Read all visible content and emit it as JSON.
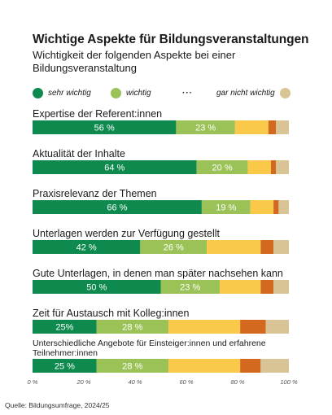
{
  "title": "Wichtige Aspekte für Bildungsveranstaltungen",
  "subtitle": "Wichtigkeit der folgenden Aspekte bei einer Bildungsveranstaltung",
  "source": "Quelle: Bildungsumfrage, 2024/25",
  "colors": {
    "sehr_wichtig": "#0e8a4e",
    "wichtig": "#9bc257",
    "mid": "#fbc94a",
    "orange": "#d2691e",
    "gar_nicht_wichtig": "#d8c494"
  },
  "legend": [
    {
      "key": "sehr_wichtig",
      "label": "sehr wichtig"
    },
    {
      "key": "wichtig",
      "label": "wichtig"
    },
    {
      "key": "dots",
      "label": "···"
    },
    {
      "key": "gar_nicht_wichtig",
      "label": "gar nicht wichtig"
    }
  ],
  "chart_data": {
    "type": "bar",
    "orientation": "horizontal",
    "stacked": true,
    "title": "Wichtige Aspekte für Bildungsveranstaltungen",
    "subtitle": "Wichtigkeit der folgenden Aspekte bei einer Bildungsveranstaltung",
    "xlim": [
      0,
      100
    ],
    "x_ticks": [
      "0 %",
      "20 %",
      "40 %",
      "60 %",
      "80 %",
      "100 %"
    ],
    "categories": [
      "Expertise der Referent:innen",
      "Aktualität der Inhalte",
      "Praxisrelevanz der Themen",
      "Unterlagen werden zur Verfügung gestellt",
      "Gute Unterlagen, in denen man später nachsehen kann",
      "Zeit für Austausch mit Kolleg:innen",
      "Unterschiedliche Angebote für Einsteiger:innen und erfahrene Teilnehmer:innen"
    ],
    "series": [
      {
        "name": "sehr wichtig",
        "color_key": "sehr_wichtig",
        "values": [
          56,
          64,
          66,
          42,
          50,
          25,
          25
        ],
        "labels": [
          "56 %",
          "64 %",
          "66 %",
          "42 %",
          "50 %",
          "25%",
          "25 %"
        ]
      },
      {
        "name": "wichtig",
        "color_key": "wichtig",
        "values": [
          23,
          20,
          19,
          26,
          23,
          28,
          28
        ],
        "labels": [
          "23 %",
          "20 %",
          "19 %",
          "26 %",
          "23 %",
          "28 %",
          "28 %"
        ]
      },
      {
        "color_key": "mid",
        "values": [
          13,
          9,
          9,
          21,
          16,
          28,
          28
        ]
      },
      {
        "color_key": "orange",
        "values": [
          3,
          2,
          2,
          5,
          5,
          10,
          8
        ]
      },
      {
        "name": "gar nicht wichtig",
        "color_key": "gar_nicht_wichtig",
        "values": [
          5,
          5,
          4,
          6,
          6,
          9,
          11
        ]
      }
    ],
    "grid": false,
    "legend_position": "top"
  }
}
